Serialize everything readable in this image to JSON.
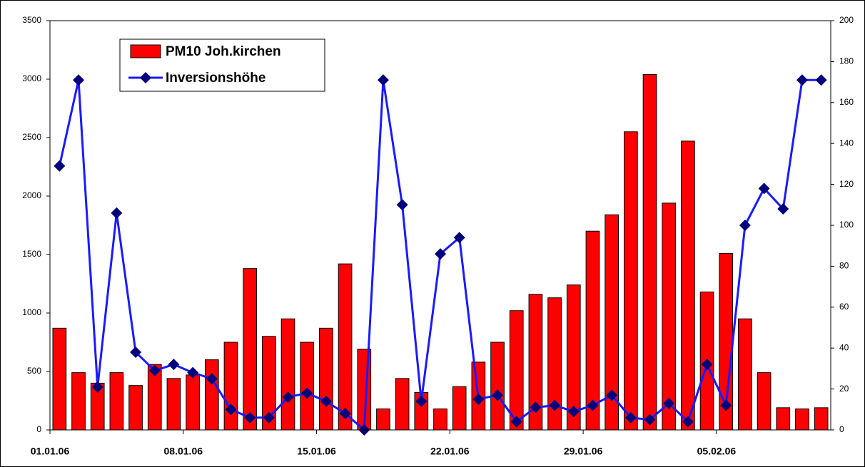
{
  "chart_data": {
    "type": "bar-line",
    "categories": [
      "01.01.06",
      null,
      null,
      null,
      null,
      null,
      null,
      "08.01.06",
      null,
      null,
      null,
      null,
      null,
      null,
      "15.01.06",
      null,
      null,
      null,
      null,
      null,
      null,
      "22.01.06",
      null,
      null,
      null,
      null,
      null,
      null,
      "29.01.06",
      null,
      null,
      null,
      null,
      null,
      null,
      "05.02.06",
      null,
      null,
      null,
      null,
      null
    ],
    "series": [
      {
        "name": "PM10 Joh.kirchen",
        "type": "bar",
        "color": "#ff0000",
        "axis": "y",
        "values": [
          870,
          490,
          400,
          490,
          380,
          560,
          440,
          470,
          600,
          750,
          1380,
          800,
          950,
          750,
          870,
          1420,
          690,
          180,
          440,
          320,
          180,
          370,
          580,
          750,
          1020,
          1160,
          1130,
          1240,
          1700,
          1840,
          2550,
          3040,
          1940,
          2470,
          1180,
          1510,
          950,
          490,
          190,
          180,
          190
        ]
      },
      {
        "name": "Inversionshöhe",
        "type": "line",
        "color": "#1a1aff",
        "marker_color": "#00007a",
        "axis": "y2",
        "values": [
          129,
          171,
          21,
          106,
          38,
          29,
          32,
          28,
          25,
          10,
          6,
          6,
          16,
          18,
          14,
          8,
          0,
          171,
          110,
          14,
          86,
          94,
          15,
          17,
          4,
          11,
          12,
          9,
          12,
          17,
          6,
          5,
          13,
          4,
          32,
          12,
          100,
          118,
          108,
          171,
          171
        ]
      }
    ],
    "ylim": [
      0,
      3500
    ],
    "yticks": [
      0,
      500,
      1000,
      1500,
      2000,
      2500,
      3000,
      3500
    ],
    "y2lim": [
      0,
      200
    ],
    "y2ticks": [
      0,
      20,
      40,
      60,
      80,
      100,
      120,
      140,
      160,
      180,
      200
    ],
    "legend": "top-left",
    "grid": false
  }
}
